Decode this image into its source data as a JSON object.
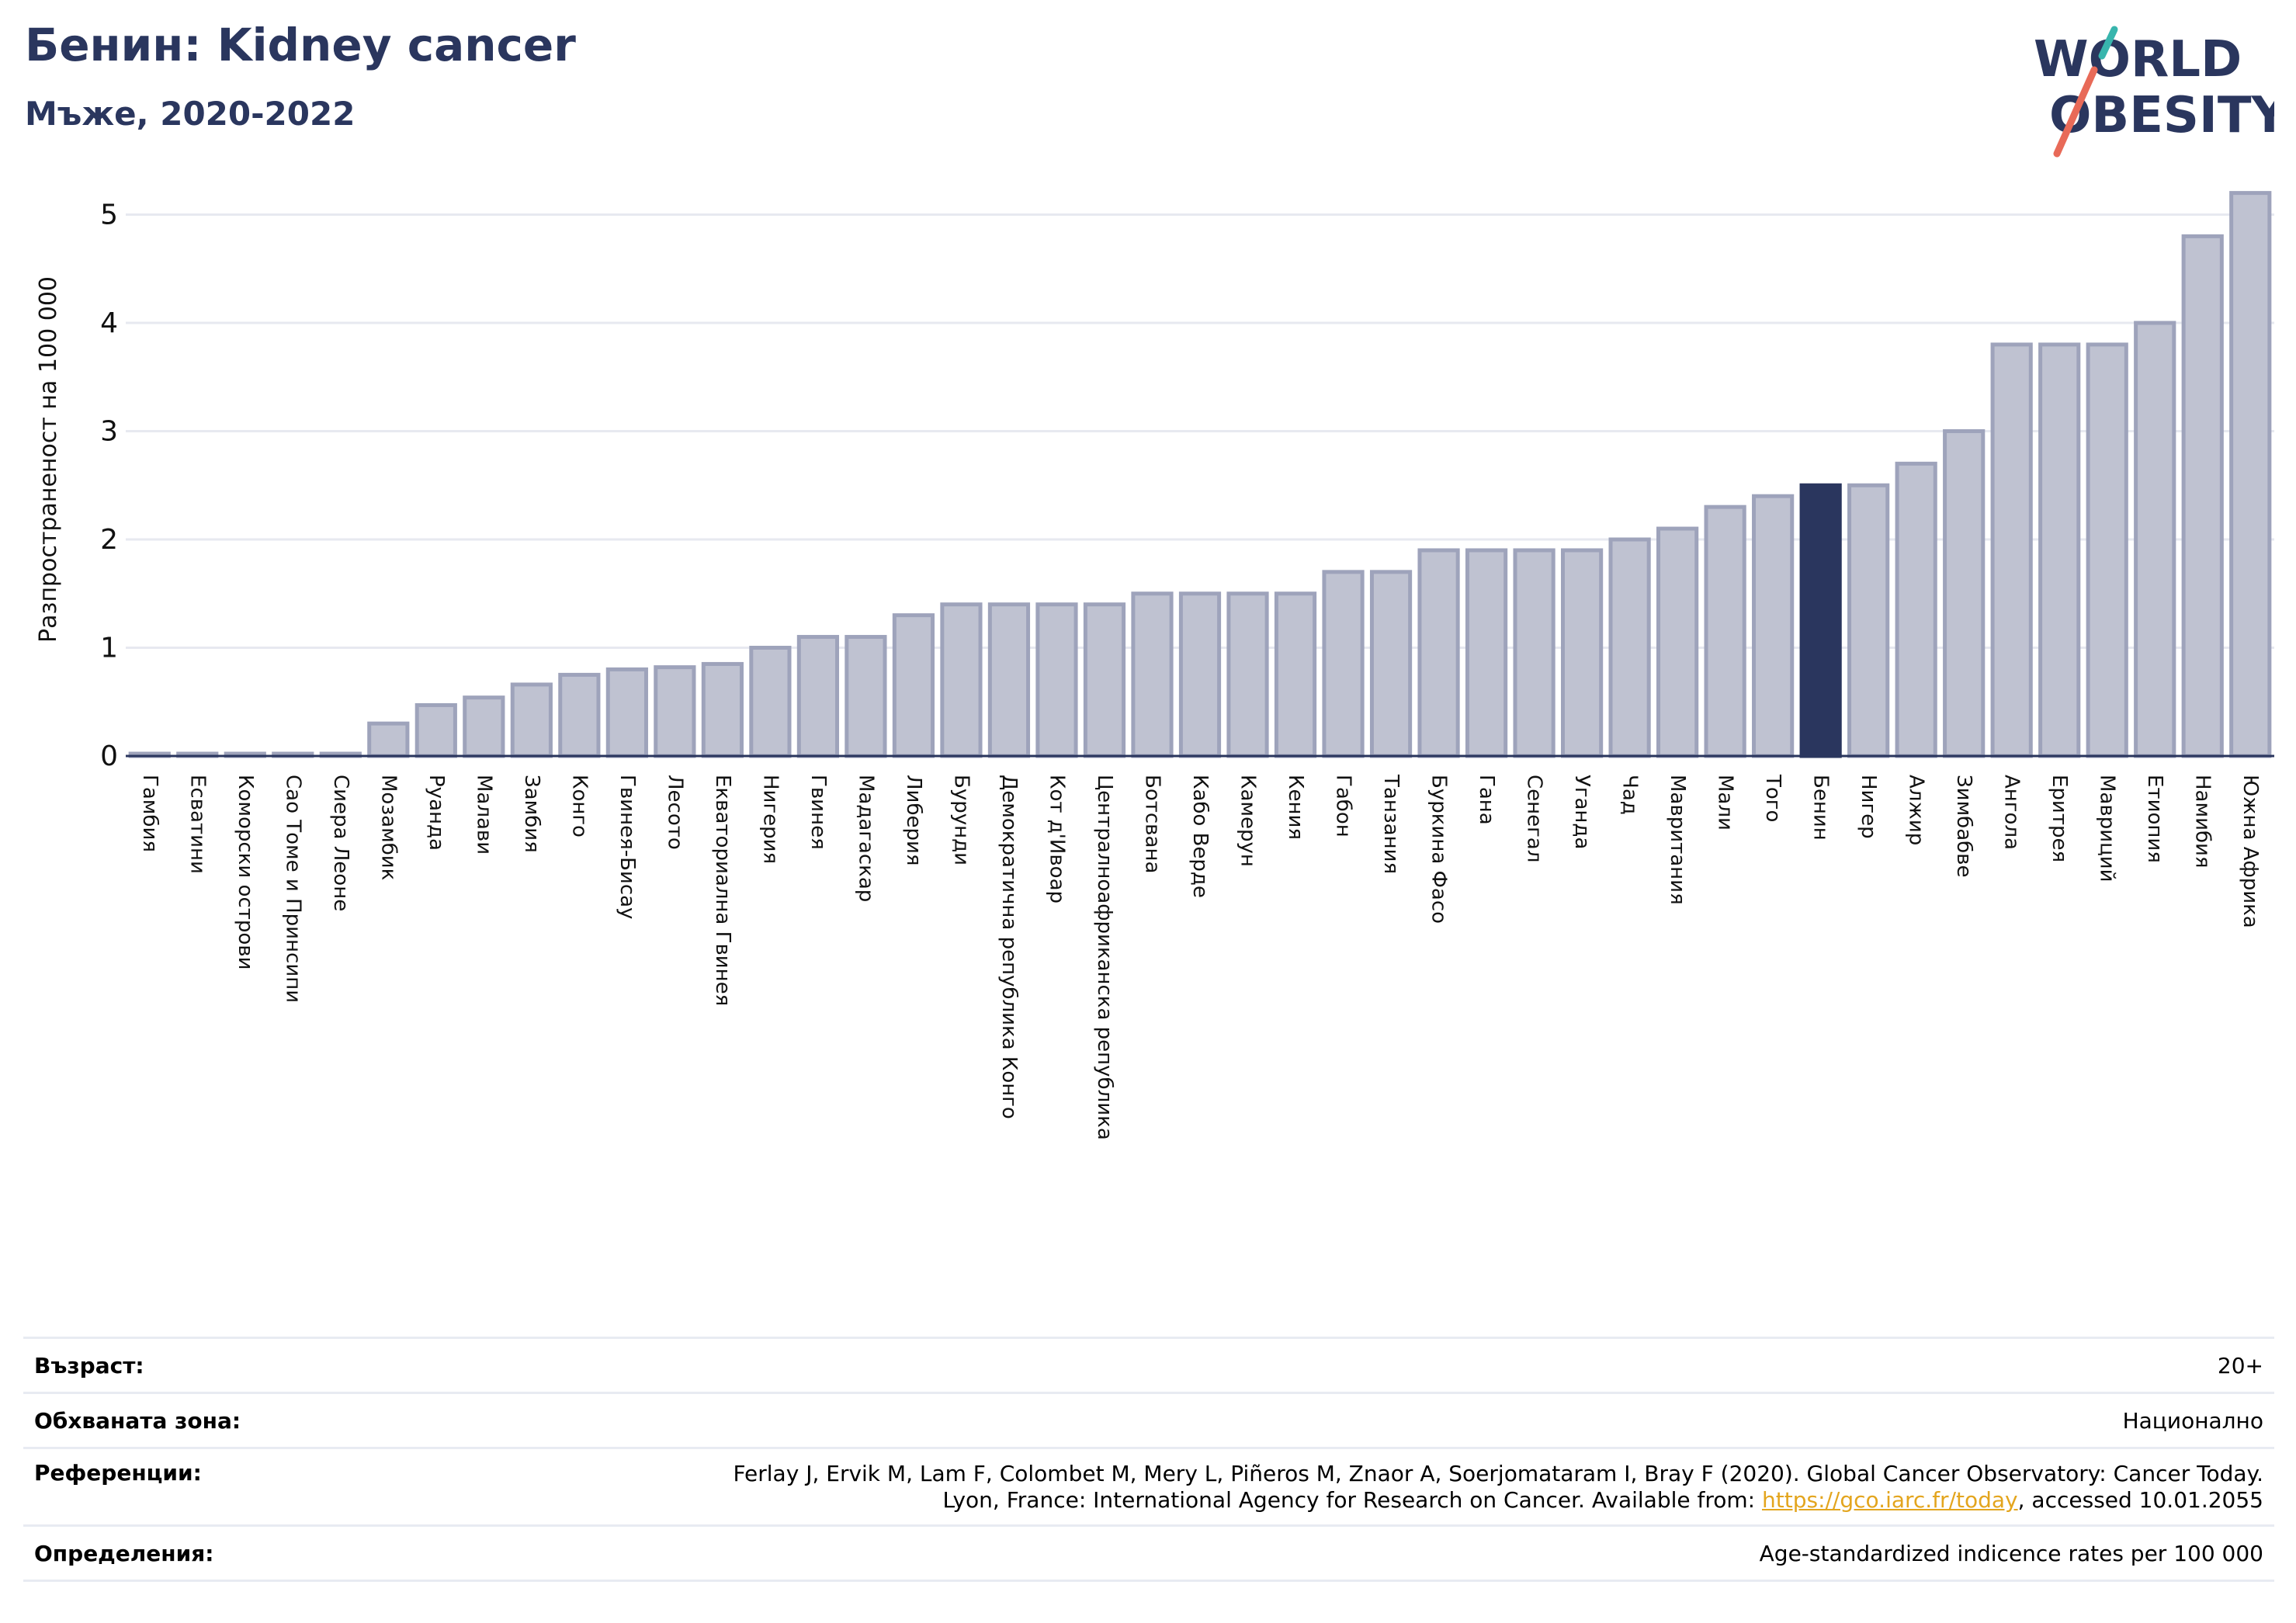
{
  "header": {
    "title": "Бенин: Kidney cancer",
    "subtitle": "Мъже, 2020-2022"
  },
  "logo": {
    "line1_text": "WORLD",
    "line2_text": "OBESITY"
  },
  "colors": {
    "bar_default": "#bfc2d1",
    "bar_border": "#9ea3bb",
    "bar_highlight": "#2a365e",
    "title": "#2a365e",
    "logo_teal": "#38b5ad",
    "logo_coral": "#e86a58",
    "link": "#e3a51e"
  },
  "chart_data": {
    "type": "bar",
    "title": "",
    "xlabel": "",
    "ylabel": "Разпространеност на 100 000",
    "ylim": [
      0,
      5.3
    ],
    "yticks": [
      0,
      1,
      2,
      3,
      4,
      5
    ],
    "grid": true,
    "highlight": "Бенин",
    "categories": [
      "Гамбия",
      "Есватини",
      "Коморски острови",
      "Сао Томе и Принсипи",
      "Сиера Леоне",
      "Мозамбик",
      "Руанда",
      "Малави",
      "Замбия",
      "Конго",
      "Гвинея-Бисау",
      "Лесото",
      "Екваториална Гвинея",
      "Нигерия",
      "Гвинея",
      "Мадагаскар",
      "Либерия",
      "Бурунди",
      "Демократична република Конго",
      "Кот д'Ивоар",
      "Централноафриканска република",
      "Ботсвана",
      "Кабо Верде",
      "Камерун",
      "Кения",
      "Габон",
      "Танзания",
      "Буркина Фасо",
      "Гана",
      "Сенегал",
      "Уганда",
      "Чад",
      "Мавритания",
      "Мали",
      "Того",
      "Бенин",
      "Нигер",
      "Алжир",
      "Зимбабве",
      "Ангола",
      "Еритрея",
      "Мавриций",
      "Етиопия",
      "Намибия",
      "Южна Африка"
    ],
    "values": [
      0.02,
      0.02,
      0.02,
      0.02,
      0.02,
      0.3,
      0.47,
      0.54,
      0.66,
      0.75,
      0.8,
      0.82,
      0.85,
      1.0,
      1.1,
      1.1,
      1.3,
      1.4,
      1.4,
      1.4,
      1.4,
      1.5,
      1.5,
      1.5,
      1.5,
      1.7,
      1.7,
      1.9,
      1.9,
      1.9,
      1.9,
      2.0,
      2.1,
      2.3,
      2.4,
      2.5,
      2.5,
      2.7,
      3.0,
      3.8,
      3.8,
      3.8,
      4.0,
      4.8,
      5.2
    ]
  },
  "info": {
    "age_label": "Възраст:",
    "age_value": "20+",
    "coverage_label": "Обхваната зона:",
    "coverage_value": "Национално",
    "references_label": "Референции:",
    "references_line1": "Ferlay J, Ervik M, Lam F, Colombet M, Mery L, Piñeros M, Znaor A, Soerjomataram I, Bray F (2020). Global Cancer Observatory: Cancer Today.",
    "references_line2_prefix": "Lyon, France: International Agency for Research on Cancer. Available from: ",
    "references_link": "https://gco.iarc.fr/today",
    "references_line2_suffix": ", accessed 10.01.2055",
    "definitions_label": "Определения:",
    "definitions_value": "Age-standardized indicence rates per 100 000"
  }
}
